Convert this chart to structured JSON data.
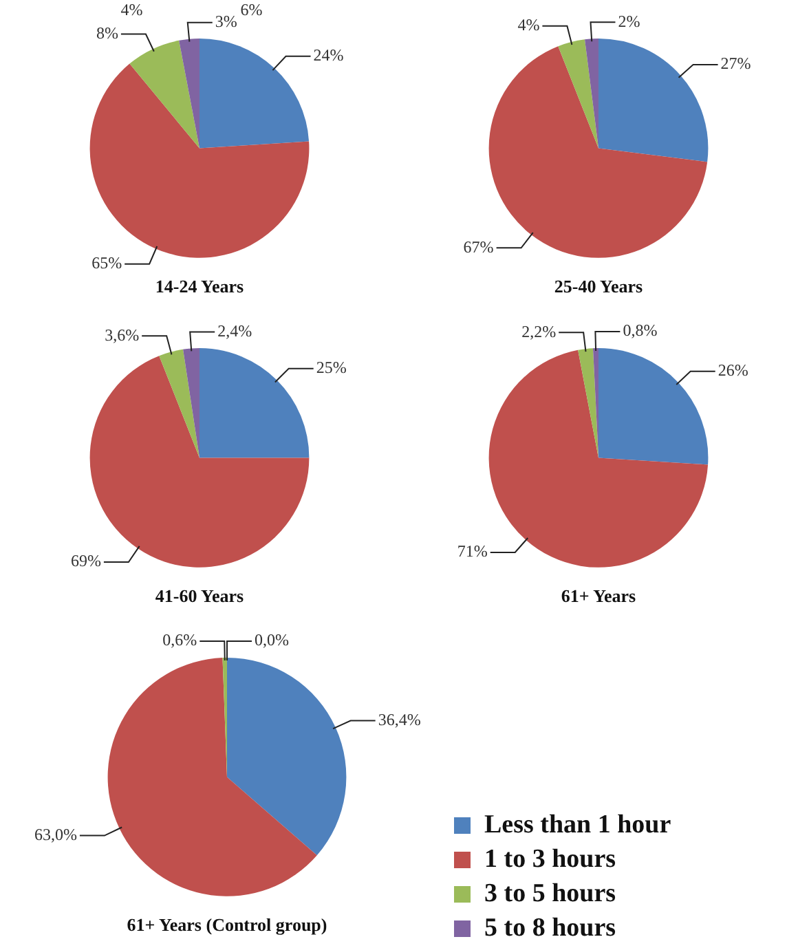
{
  "chart_data": [
    {
      "type": "pie",
      "title": "14-24 Years",
      "categories": [
        null,
        null,
        null,
        null
      ],
      "values": [
        24,
        65,
        8,
        3
      ],
      "value_labels": [
        "24%",
        "65%",
        "8%",
        "3%"
      ],
      "colors": [
        "#4f81bd",
        "#c0504d",
        "#9bbb59",
        "#8064a2"
      ],
      "annotations": [
        "4%",
        "6%"
      ],
      "legend": false
    },
    {
      "type": "pie",
      "title": "25-40 Years",
      "categories": [
        null,
        null,
        null,
        null
      ],
      "values": [
        27,
        67,
        4,
        2
      ],
      "value_labels": [
        "27%",
        "67%",
        "4%",
        "2%"
      ],
      "colors": [
        "#4f81bd",
        "#c0504d",
        "#9bbb59",
        "#8064a2"
      ],
      "legend": false
    },
    {
      "type": "pie",
      "title": "41-60 Years",
      "categories": [
        null,
        null,
        null,
        null
      ],
      "values": [
        25,
        69,
        3.6,
        2.4
      ],
      "value_labels": [
        "25%",
        "69%",
        "3,6%",
        "2,4%"
      ],
      "colors": [
        "#4f81bd",
        "#c0504d",
        "#9bbb59",
        "#8064a2"
      ],
      "legend": false
    },
    {
      "type": "pie",
      "title": "61+ Years",
      "categories": [
        null,
        null,
        null,
        null
      ],
      "values": [
        26,
        71,
        2.2,
        0.8
      ],
      "value_labels": [
        "26%",
        "71%",
        "2,2%",
        "0,8%"
      ],
      "colors": [
        "#4f81bd",
        "#c0504d",
        "#9bbb59",
        "#8064a2"
      ],
      "legend": false
    },
    {
      "type": "pie",
      "title": "61+ Years (Control group)",
      "categories": [
        "Less than 1 hour",
        "1 to 3 hours",
        "3 to 5 hours",
        "5 to 8 hours"
      ],
      "values": [
        36.4,
        63.0,
        0.6,
        0.0
      ],
      "value_labels": [
        "36,4%",
        "63,0%",
        "0,6%",
        "0,0%"
      ],
      "colors": [
        "#4f81bd",
        "#c0504d",
        "#9bbb59",
        "#8064a2"
      ],
      "legend": "bottom right"
    }
  ]
}
